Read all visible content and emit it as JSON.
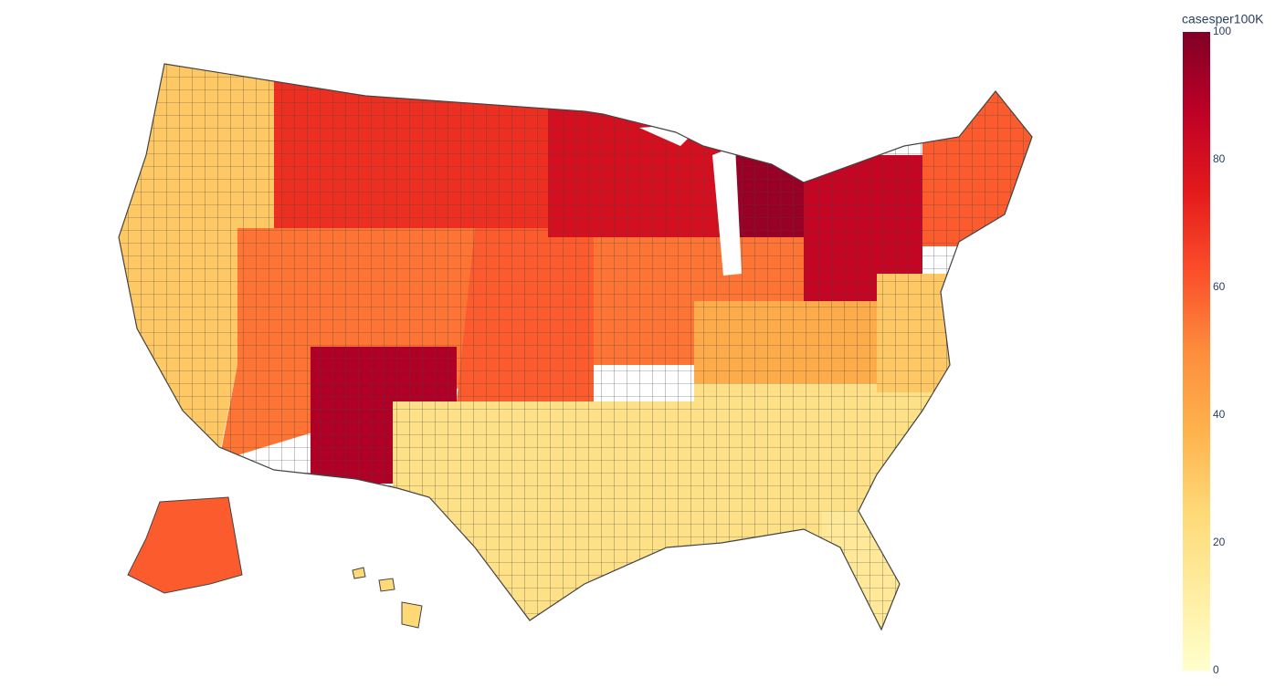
{
  "chart_data": {
    "type": "choropleth",
    "colorbar_title": "casesper100K",
    "zlim": [
      0,
      100
    ],
    "zticks": [
      0,
      20,
      40,
      60,
      80,
      100
    ],
    "colorscale": [
      "#ffffcc",
      "#ffeda0",
      "#fed976",
      "#feb24c",
      "#fd8d3c",
      "#fc4e2a",
      "#e31a1c",
      "#bd0026",
      "#800026"
    ],
    "values": [
      30,
      70,
      55,
      90,
      20,
      60,
      80,
      95,
      55,
      20,
      40,
      85,
      60,
      15,
      30,
      60,
      25
    ]
  }
}
